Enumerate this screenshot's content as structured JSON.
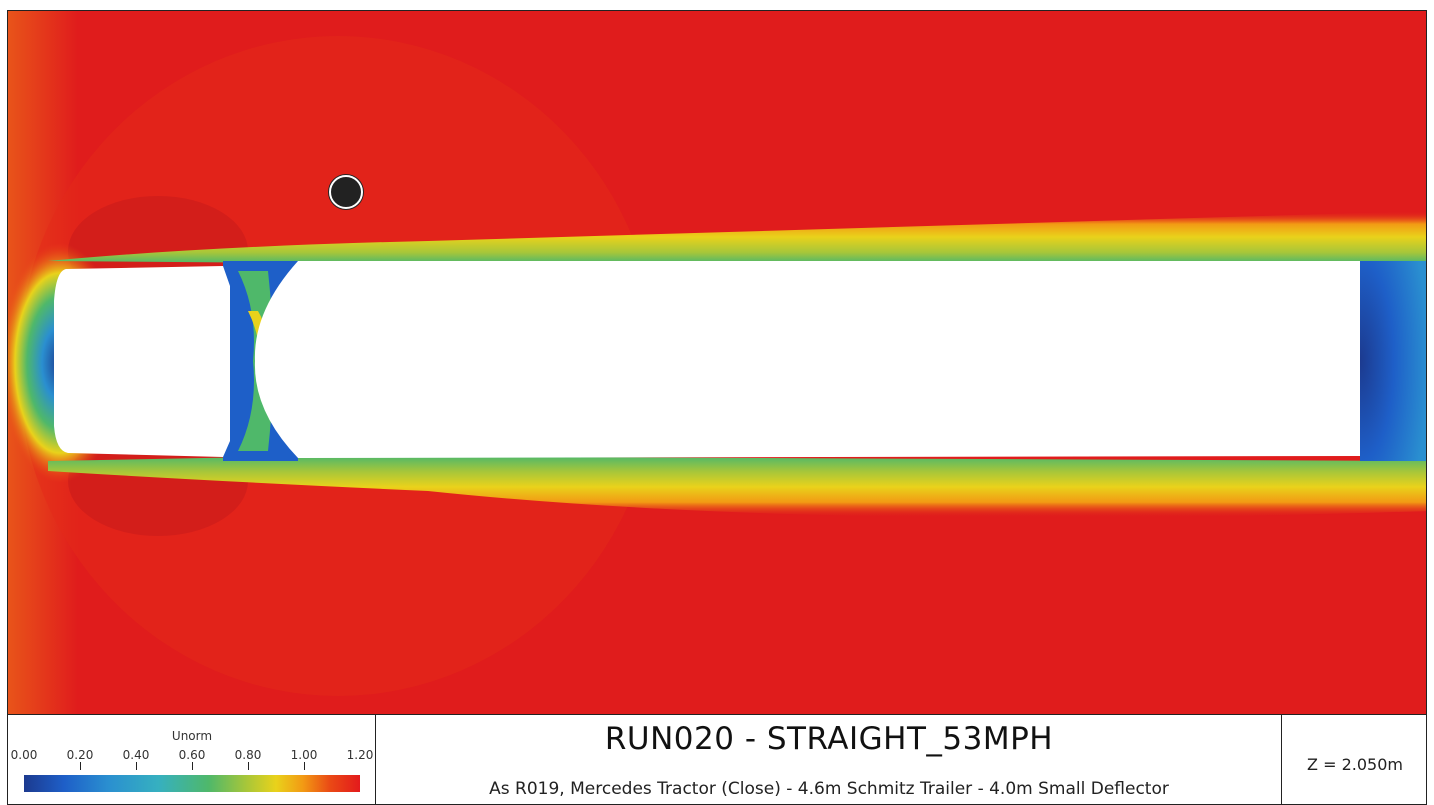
{
  "plot": {
    "title": "RUN020 - STRAIGHT_53MPH",
    "description": "As R019, Mercedes Tractor (Close) - 4.6m Schmitz Trailer - 4.0m Small Deflector",
    "z_label": "Z = 2.050m"
  },
  "legend": {
    "title": "Unorm",
    "ticks": [
      "0.00",
      "0.20",
      "0.40",
      "0.60",
      "0.80",
      "1.00",
      "1.20"
    ],
    "range": [
      0.0,
      1.2
    ]
  },
  "colors": {
    "free_stream": "#e01c1c",
    "background": "#ffffff"
  }
}
